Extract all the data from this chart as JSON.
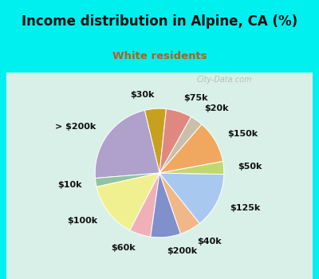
{
  "title": "Income distribution in Alpine, CA (%)",
  "subtitle": "White residents",
  "title_color": "#111111",
  "subtitle_color": "#b06020",
  "bg_cyan": "#00f0f0",
  "bg_chart": "#e8f5ee",
  "labels": [
    "$30k",
    "> $200k",
    "$10k",
    "$100k",
    "$60k",
    "$200k",
    "$40k",
    "$125k",
    "$50k",
    "$150k",
    "$20k",
    "$75k"
  ],
  "values": [
    5,
    21,
    2,
    13,
    5,
    7,
    5,
    13,
    3,
    10,
    3,
    6
  ],
  "colors": [
    "#c8a020",
    "#b0a0cc",
    "#90c4a0",
    "#f0f090",
    "#f0b0b8",
    "#8090cc",
    "#f0b888",
    "#a8c8f0",
    "#c0d870",
    "#f0a860",
    "#c8c0a8",
    "#e08880"
  ],
  "startangle": 84,
  "label_fontsize": 8,
  "watermark": "City-Data.com"
}
